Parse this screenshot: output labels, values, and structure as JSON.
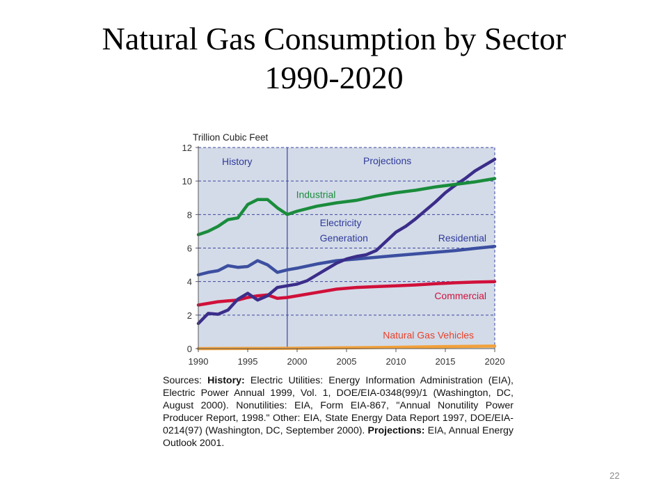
{
  "slide": {
    "title_line1": "Natural Gas Consumption by Sector",
    "title_line2": "1990-2020",
    "page_number": "22"
  },
  "sources": {
    "intro": "Sources: ",
    "history_label": "History:",
    "history_text": " Electric Utilities: Energy Information Administration (EIA), Electric Power Annual 1999, Vol. 1, DOE/EIA-0348(99)/1 (Washington, DC, August 2000). Nonutilities: EIA, Form EIA-867, \"Annual Nonutility Power Producer Report, 1998.\" Other: EIA, State Energy Data Report 1997, DOE/EIA-0214(97) (Washington, DC, September 2000). ",
    "projections_label": "Projections:",
    "projections_text": " EIA, Annual Energy Outlook 2001."
  },
  "chart_data": {
    "type": "line",
    "title": "",
    "ylabel": "Trillion Cubic Feet",
    "xlabel": "",
    "xlim": [
      1990,
      2020
    ],
    "ylim": [
      0,
      12
    ],
    "xticks": [
      1990,
      1995,
      2000,
      2005,
      2010,
      2015,
      2020
    ],
    "yticks": [
      0,
      2,
      4,
      6,
      8,
      10,
      12
    ],
    "grid": "horizontal dashed",
    "history_end_year": 1999,
    "region_labels": [
      "History",
      "Projections"
    ],
    "colors": {
      "background": "#d3dbe8",
      "grid": "#3b44a0",
      "divider": "#3b44a0",
      "axis_text": "#333333",
      "region_text": "#2e3a9a"
    },
    "series": [
      {
        "name": "Industrial",
        "color": "#1a8c3c",
        "label_color": "#1a8c3c",
        "points": [
          [
            1990,
            6.8
          ],
          [
            1991,
            7.0
          ],
          [
            1992,
            7.3
          ],
          [
            1993,
            7.7
          ],
          [
            1994,
            7.8
          ],
          [
            1995,
            8.6
          ],
          [
            1996,
            8.9
          ],
          [
            1997,
            8.9
          ],
          [
            1998,
            8.4
          ],
          [
            1999,
            8.0
          ],
          [
            2000,
            8.2
          ],
          [
            2002,
            8.5
          ],
          [
            2004,
            8.7
          ],
          [
            2006,
            8.85
          ],
          [
            2008,
            9.1
          ],
          [
            2010,
            9.3
          ],
          [
            2012,
            9.45
          ],
          [
            2014,
            9.65
          ],
          [
            2016,
            9.8
          ],
          [
            2018,
            9.95
          ],
          [
            2020,
            10.15
          ]
        ]
      },
      {
        "name": "Electricity Generation",
        "color": "#3b2d8a",
        "label_color": "#2e3a9a",
        "points": [
          [
            1990,
            1.5
          ],
          [
            1991,
            2.1
          ],
          [
            1992,
            2.05
          ],
          [
            1993,
            2.3
          ],
          [
            1994,
            2.95
          ],
          [
            1995,
            3.3
          ],
          [
            1996,
            2.9
          ],
          [
            1997,
            3.15
          ],
          [
            1998,
            3.65
          ],
          [
            1999,
            3.75
          ],
          [
            2000,
            3.85
          ],
          [
            2001,
            4.05
          ],
          [
            2002,
            4.4
          ],
          [
            2003,
            4.75
          ],
          [
            2004,
            5.1
          ],
          [
            2005,
            5.35
          ],
          [
            2006,
            5.5
          ],
          [
            2007,
            5.6
          ],
          [
            2008,
            5.85
          ],
          [
            2009,
            6.4
          ],
          [
            2010,
            6.95
          ],
          [
            2011,
            7.3
          ],
          [
            2012,
            7.75
          ],
          [
            2013,
            8.25
          ],
          [
            2014,
            8.75
          ],
          [
            2015,
            9.3
          ],
          [
            2016,
            9.75
          ],
          [
            2017,
            10.15
          ],
          [
            2018,
            10.6
          ],
          [
            2019,
            10.95
          ],
          [
            2020,
            11.3
          ]
        ]
      },
      {
        "name": "Residential",
        "color": "#3c4fa0",
        "label_color": "#2e3a9a",
        "points": [
          [
            1990,
            4.4
          ],
          [
            1991,
            4.55
          ],
          [
            1992,
            4.65
          ],
          [
            1993,
            4.95
          ],
          [
            1994,
            4.85
          ],
          [
            1995,
            4.9
          ],
          [
            1996,
            5.25
          ],
          [
            1997,
            5.0
          ],
          [
            1998,
            4.55
          ],
          [
            1999,
            4.7
          ],
          [
            2000,
            4.8
          ],
          [
            2002,
            5.05
          ],
          [
            2004,
            5.25
          ],
          [
            2006,
            5.35
          ],
          [
            2008,
            5.45
          ],
          [
            2010,
            5.55
          ],
          [
            2012,
            5.65
          ],
          [
            2014,
            5.75
          ],
          [
            2016,
            5.85
          ],
          [
            2018,
            5.98
          ],
          [
            2020,
            6.1
          ]
        ]
      },
      {
        "name": "Commercial",
        "color": "#d0103a",
        "label_color": "#d0103a",
        "points": [
          [
            1990,
            2.6
          ],
          [
            1991,
            2.7
          ],
          [
            1992,
            2.8
          ],
          [
            1993,
            2.85
          ],
          [
            1994,
            2.9
          ],
          [
            1995,
            3.05
          ],
          [
            1996,
            3.15
          ],
          [
            1997,
            3.2
          ],
          [
            1998,
            3.0
          ],
          [
            1999,
            3.05
          ],
          [
            2000,
            3.15
          ],
          [
            2002,
            3.35
          ],
          [
            2004,
            3.55
          ],
          [
            2006,
            3.65
          ],
          [
            2008,
            3.7
          ],
          [
            2010,
            3.75
          ],
          [
            2012,
            3.8
          ],
          [
            2014,
            3.87
          ],
          [
            2016,
            3.93
          ],
          [
            2018,
            3.97
          ],
          [
            2020,
            4.0
          ]
        ]
      },
      {
        "name": "Natural Gas Vehicles",
        "color": "#f2a13a",
        "label_color": "#e8412b",
        "points": [
          [
            1990,
            0.0
          ],
          [
            1995,
            0.01
          ],
          [
            2000,
            0.02
          ],
          [
            2005,
            0.05
          ],
          [
            2010,
            0.08
          ],
          [
            2015,
            0.12
          ],
          [
            2020,
            0.15
          ]
        ]
      }
    ]
  }
}
